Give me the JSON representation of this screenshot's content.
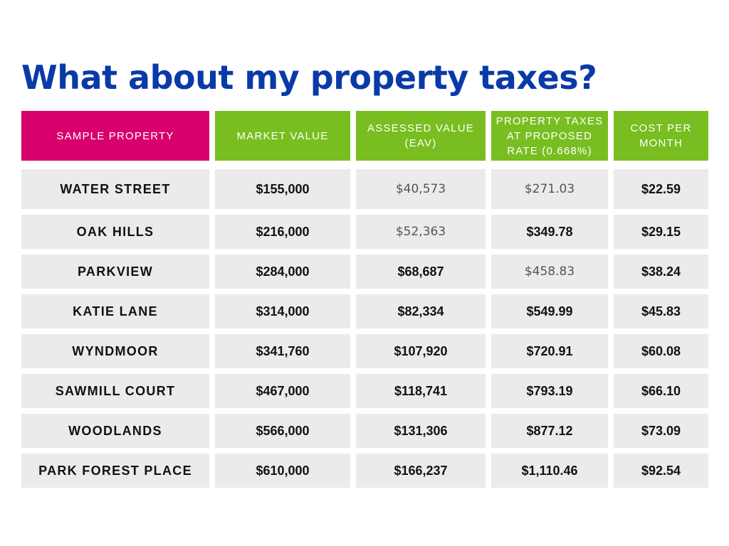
{
  "title": "What about my property taxes?",
  "headers": [
    "SAMPLE PROPERTY",
    "MARKET VALUE",
    "ASSESSED VALUE\n(EAV)",
    "PROPERTY TAXES\nAT PROPOSED\nRATE (0.668%)",
    "COST PER\nMONTH"
  ],
  "colors": {
    "title": "#0a3aa8",
    "header_first": "#d8006c",
    "header_rest": "#78be20",
    "cell_bg": "#ebebeb"
  },
  "rows": [
    {
      "property": "WATER STREET",
      "market_value": "$155,000",
      "assessed_value": "$40,573",
      "property_taxes": "$271.03",
      "cost_per_month": "$22.59"
    },
    {
      "property": "OAK HILLS",
      "market_value": "$216,000",
      "assessed_value": "$52,363",
      "property_taxes": "$349.78",
      "cost_per_month": "$29.15"
    },
    {
      "property": "PARKVIEW",
      "market_value": "$284,000",
      "assessed_value": "$68,687",
      "property_taxes": "$458.83",
      "cost_per_month": "$38.24"
    },
    {
      "property": "KATIE LANE",
      "market_value": "$314,000",
      "assessed_value": "$82,334",
      "property_taxes": "$549.99",
      "cost_per_month": "$45.83"
    },
    {
      "property": "WYNDMOOR",
      "market_value": "$341,760",
      "assessed_value": "$107,920",
      "property_taxes": "$720.91",
      "cost_per_month": "$60.08"
    },
    {
      "property": "SAWMILL COURT",
      "market_value": "$467,000",
      "assessed_value": "$118,741",
      "property_taxes": "$793.19",
      "cost_per_month": "$66.10"
    },
    {
      "property": "WOODLANDS",
      "market_value": "$566,000",
      "assessed_value": "$131,306",
      "property_taxes": "$877.12",
      "cost_per_month": "$73.09"
    },
    {
      "property": "PARK FOREST PLACE",
      "market_value": "$610,000",
      "assessed_value": "$166,237",
      "property_taxes": "$1,110.46",
      "cost_per_month": "$92.54"
    }
  ]
}
